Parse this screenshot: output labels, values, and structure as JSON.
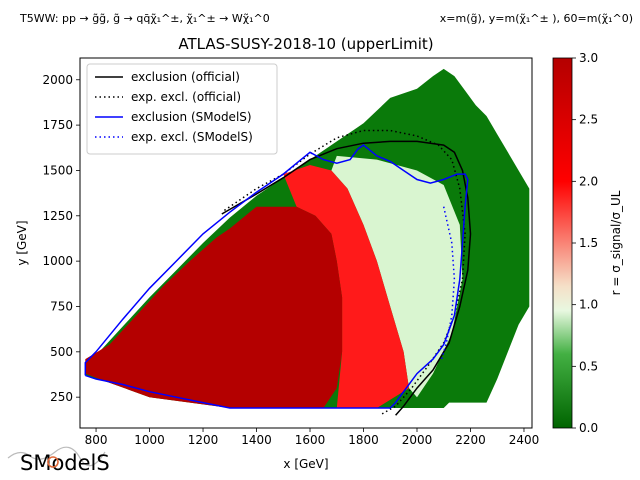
{
  "header": {
    "left_text": "T5WW: pp → g̃g̃, g̃ → qq̄χ̃₁^±, χ̃₁^± → Wχ̃₁^0",
    "right_text": "x=m(g̃), y=m(χ̃₁^± ), 60=m(χ̃₁^0)"
  },
  "logo": {
    "text": "SModelS"
  },
  "chart_data": {
    "type": "heatmap",
    "title": "ATLAS-SUSY-2018-10 (upperLimit)",
    "xlabel": "x [GeV]",
    "ylabel": "y [GeV]",
    "xlim": [
      740,
      2430
    ],
    "ylim": [
      80,
      2120
    ],
    "xticks": [
      800,
      1000,
      1200,
      1400,
      1600,
      1800,
      2000,
      2200,
      2400
    ],
    "yticks": [
      250,
      500,
      750,
      1000,
      1250,
      1500,
      1750,
      2000
    ],
    "colorbar": {
      "label": "r = σ_signal/σ_UL",
      "range": [
        0.0,
        3.0
      ],
      "ticks": [
        0.0,
        0.5,
        1.0,
        1.5,
        2.0,
        2.5,
        3.0
      ],
      "stops": [
        {
          "value": 0.0,
          "color": "#006400"
        },
        {
          "value": 0.6,
          "color": "#43b043"
        },
        {
          "value": 0.95,
          "color": "#e8f8e0"
        },
        {
          "value": 1.15,
          "color": "#f5e0c8"
        },
        {
          "value": 2.0,
          "color": "#ff0000"
        },
        {
          "value": 3.0,
          "color": "#b40000"
        }
      ]
    },
    "legend": {
      "position": "top-left",
      "entries": [
        {
          "label": "exclusion (official)",
          "color": "#000000",
          "style": "solid"
        },
        {
          "label": "exp. excl. (official)",
          "color": "#000000",
          "style": "dotted"
        },
        {
          "label": "exclusion (SModelS)",
          "color": "#0000ff",
          "style": "solid"
        },
        {
          "label": "exp. excl. (SModelS)",
          "color": "#0000ff",
          "style": "dotted"
        }
      ]
    },
    "regions": {
      "grid_outline": [
        [
          800,
          480
        ],
        [
          900,
          640
        ],
        [
          1000,
          800
        ],
        [
          1100,
          950
        ],
        [
          1200,
          1100
        ],
        [
          1300,
          1240
        ],
        [
          1400,
          1360
        ],
        [
          1500,
          1460
        ],
        [
          1600,
          1560
        ],
        [
          1700,
          1660
        ],
        [
          1800,
          1760
        ],
        [
          1900,
          1900
        ],
        [
          2000,
          1950
        ],
        [
          2060,
          2020
        ],
        [
          2100,
          2060
        ],
        [
          2140,
          2020
        ],
        [
          2180,
          1940
        ],
        [
          2220,
          1860
        ],
        [
          2260,
          1800
        ],
        [
          2300,
          1700
        ],
        [
          2340,
          1600
        ],
        [
          2380,
          1500
        ],
        [
          2420,
          1400
        ],
        [
          2420,
          750
        ],
        [
          2380,
          650
        ],
        [
          2340,
          500
        ],
        [
          2300,
          350
        ],
        [
          2260,
          220
        ],
        [
          2120,
          220
        ],
        [
          2100,
          190
        ],
        [
          1300,
          190
        ],
        [
          1200,
          210
        ],
        [
          1000,
          250
        ],
        [
          850,
          330
        ],
        [
          760,
          370
        ],
        [
          760,
          430
        ]
      ],
      "high_r_core": [
        [
          760,
          380
        ],
        [
          760,
          460
        ],
        [
          850,
          540
        ],
        [
          950,
          700
        ],
        [
          1050,
          860
        ],
        [
          1150,
          1000
        ],
        [
          1250,
          1130
        ],
        [
          1300,
          1180
        ],
        [
          1400,
          1300
        ],
        [
          1500,
          1300
        ],
        [
          1550,
          1300
        ],
        [
          1620,
          1250
        ],
        [
          1680,
          1150
        ],
        [
          1700,
          1000
        ],
        [
          1720,
          800
        ],
        [
          1720,
          500
        ],
        [
          1700,
          300
        ],
        [
          1650,
          190
        ],
        [
          1300,
          190
        ],
        [
          1200,
          210
        ],
        [
          1000,
          250
        ],
        [
          850,
          330
        ]
      ],
      "red_band": [
        [
          1500,
          1480
        ],
        [
          1600,
          1530
        ],
        [
          1680,
          1500
        ],
        [
          1740,
          1400
        ],
        [
          1800,
          1200
        ],
        [
          1850,
          1000
        ],
        [
          1900,
          750
        ],
        [
          1950,
          500
        ],
        [
          1970,
          300
        ],
        [
          1850,
          190
        ],
        [
          1700,
          190
        ],
        [
          1720,
          500
        ],
        [
          1720,
          800
        ],
        [
          1700,
          1000
        ],
        [
          1680,
          1150
        ],
        [
          1620,
          1250
        ],
        [
          1550,
          1300
        ]
      ],
      "light_band": [
        [
          1700,
          1580
        ],
        [
          1850,
          1560
        ],
        [
          2000,
          1500
        ],
        [
          2100,
          1420
        ],
        [
          2160,
          1200
        ],
        [
          2170,
          900
        ],
        [
          2130,
          600
        ],
        [
          2060,
          380
        ],
        [
          2000,
          250
        ],
        [
          1970,
          300
        ],
        [
          1950,
          500
        ],
        [
          1900,
          750
        ],
        [
          1850,
          1000
        ],
        [
          1800,
          1200
        ],
        [
          1740,
          1400
        ],
        [
          1680,
          1500
        ]
      ]
    },
    "series": [
      {
        "name": "exclusion (official)",
        "color": "#000000",
        "style": "solid",
        "points": [
          [
            1270,
            1260
          ],
          [
            1400,
            1370
          ],
          [
            1500,
            1460
          ],
          [
            1600,
            1560
          ],
          [
            1700,
            1620
          ],
          [
            1800,
            1650
          ],
          [
            1900,
            1660
          ],
          [
            2000,
            1660
          ],
          [
            2100,
            1640
          ],
          [
            2140,
            1600
          ],
          [
            2170,
            1500
          ],
          [
            2190,
            1350
          ],
          [
            2200,
            1150
          ],
          [
            2190,
            950
          ],
          [
            2160,
            750
          ],
          [
            2120,
            550
          ],
          [
            2060,
            400
          ],
          [
            2000,
            300
          ],
          [
            1950,
            200
          ],
          [
            1920,
            150
          ]
        ]
      },
      {
        "name": "exp. excl. (official)",
        "color": "#000000",
        "style": "dotted",
        "points": [
          [
            1280,
            1280
          ],
          [
            1400,
            1400
          ],
          [
            1500,
            1480
          ],
          [
            1600,
            1590
          ],
          [
            1700,
            1680
          ],
          [
            1800,
            1720
          ],
          [
            1900,
            1720
          ],
          [
            2000,
            1690
          ],
          [
            2080,
            1640
          ],
          [
            2130,
            1560
          ],
          [
            2160,
            1400
          ],
          [
            2180,
            1150
          ],
          [
            2170,
            900
          ],
          [
            2140,
            700
          ],
          [
            2100,
            550
          ],
          [
            2040,
            420
          ],
          [
            1980,
            300
          ],
          [
            1920,
            200
          ],
          [
            1860,
            150
          ]
        ]
      },
      {
        "name": "exclusion (SModelS)",
        "color": "#0000ff",
        "style": "solid",
        "points": [
          [
            760,
            370
          ],
          [
            800,
            350
          ],
          [
            900,
            320
          ],
          [
            1000,
            280
          ],
          [
            1100,
            250
          ],
          [
            1200,
            220
          ],
          [
            1300,
            190
          ],
          [
            1400,
            190
          ],
          [
            1500,
            190
          ],
          [
            1600,
            190
          ],
          [
            1700,
            190
          ],
          [
            1800,
            190
          ],
          [
            1900,
            190
          ],
          [
            1920,
            220
          ],
          [
            1950,
            280
          ],
          [
            2000,
            380
          ],
          [
            2060,
            460
          ],
          [
            2100,
            540
          ],
          [
            2140,
            700
          ],
          [
            2160,
            900
          ],
          [
            2170,
            1100
          ],
          [
            2180,
            1300
          ],
          [
            2190,
            1450
          ],
          [
            2180,
            1480
          ],
          [
            2150,
            1480
          ],
          [
            2100,
            1450
          ],
          [
            2050,
            1430
          ],
          [
            2000,
            1450
          ],
          [
            1950,
            1500
          ],
          [
            1900,
            1550
          ],
          [
            1850,
            1580
          ],
          [
            1800,
            1640
          ],
          [
            1780,
            1620
          ],
          [
            1750,
            1560
          ],
          [
            1700,
            1540
          ],
          [
            1650,
            1560
          ],
          [
            1600,
            1600
          ],
          [
            1550,
            1540
          ],
          [
            1500,
            1480
          ],
          [
            1400,
            1380
          ],
          [
            1300,
            1270
          ],
          [
            1200,
            1150
          ],
          [
            1100,
            1000
          ],
          [
            1000,
            850
          ],
          [
            900,
            680
          ],
          [
            800,
            500
          ],
          [
            760,
            440
          ],
          [
            760,
            370
          ]
        ]
      },
      {
        "name": "exp. excl. (SModelS)",
        "color": "#0000ff",
        "style": "dotted",
        "points": [
          [
            2100,
            1300
          ],
          [
            2130,
            1100
          ],
          [
            2140,
            900
          ],
          [
            2130,
            700
          ],
          [
            2110,
            550
          ],
          [
            2090,
            450
          ]
        ]
      }
    ]
  }
}
